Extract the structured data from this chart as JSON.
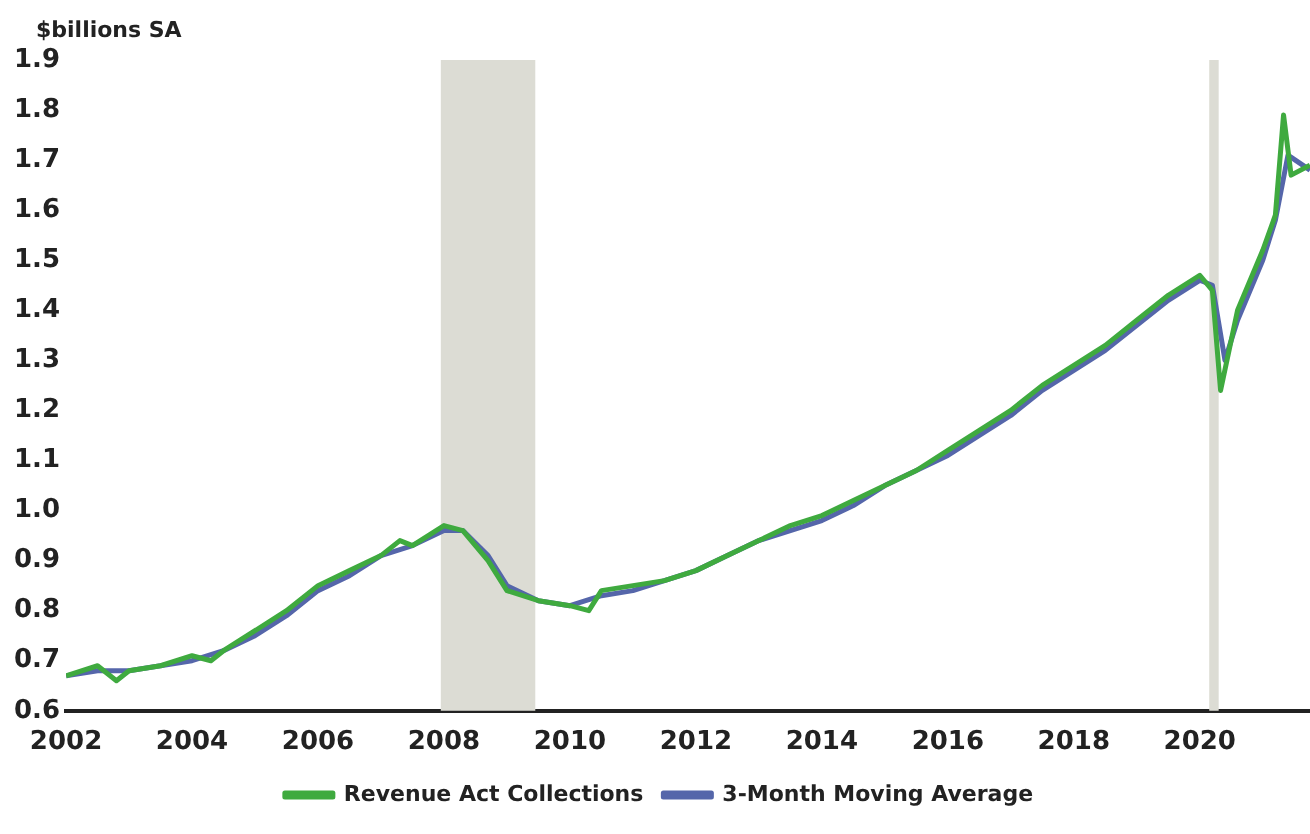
{
  "chart_data": {
    "type": "line",
    "ylabel": "$billions SA",
    "xlim": [
      2002,
      2021.75
    ],
    "xticks": [
      2002,
      2004,
      2006,
      2008,
      2010,
      2012,
      2014,
      2016,
      2018,
      2020
    ],
    "ylim": [
      0.6,
      1.9
    ],
    "yticks": [
      {
        "value": 0.6,
        "label": "0.6"
      },
      {
        "value": 0.7,
        "label": "0.7"
      },
      {
        "value": 0.8,
        "label": "0.8"
      },
      {
        "value": 0.9,
        "label": "0.9"
      },
      {
        "value": 1,
        "label": "1.0"
      },
      {
        "value": 1.1,
        "label": "1.1"
      },
      {
        "value": 1.2,
        "label": "1.2"
      },
      {
        "value": 1.3,
        "label": "1.3"
      },
      {
        "value": 1.4,
        "label": "1.4"
      },
      {
        "value": 1.5,
        "label": "1.5"
      },
      {
        "value": 1.6,
        "label": "1.6"
      },
      {
        "value": 1.7,
        "label": "1.7"
      },
      {
        "value": 1.8,
        "label": "1.8"
      },
      {
        "value": 1.9,
        "label": "1.9"
      }
    ],
    "grid": false,
    "legend": "bottom",
    "marker": "none",
    "line_style": "solid",
    "bands": [
      {
        "axis": "x",
        "from": 2007.95,
        "to": 2009.45,
        "color": "#dcdcd4"
      },
      {
        "axis": "x",
        "from": 2020.15,
        "to": 2020.3,
        "color": "#dcdcd4"
      }
    ],
    "series": [
      {
        "name": "Revenue Act Collections",
        "color": "#3faa3f",
        "x": [
          2002,
          2002.5,
          2002.8,
          2003,
          2003.5,
          2004,
          2004.3,
          2004.5,
          2005,
          2005.5,
          2006,
          2006.5,
          2007,
          2007.3,
          2007.5,
          2008,
          2008.3,
          2008.7,
          2009,
          2009.5,
          2010,
          2010.3,
          2010.5,
          2011,
          2011.5,
          2012,
          2012.5,
          2013,
          2013.5,
          2014,
          2014.5,
          2015,
          2015.5,
          2016,
          2016.5,
          2017,
          2017.5,
          2018,
          2018.5,
          2019,
          2019.5,
          2020,
          2020.2,
          2020.33,
          2020.6,
          2021,
          2021.2,
          2021.33,
          2021.45,
          2021.75
        ],
        "values": [
          0.67,
          0.69,
          0.66,
          0.68,
          0.69,
          0.71,
          0.7,
          0.72,
          0.76,
          0.8,
          0.85,
          0.88,
          0.91,
          0.94,
          0.93,
          0.97,
          0.96,
          0.9,
          0.84,
          0.82,
          0.81,
          0.8,
          0.84,
          0.85,
          0.86,
          0.88,
          0.91,
          0.94,
          0.97,
          0.99,
          1.02,
          1.05,
          1.08,
          1.12,
          1.16,
          1.2,
          1.25,
          1.29,
          1.33,
          1.38,
          1.43,
          1.47,
          1.44,
          1.24,
          1.4,
          1.52,
          1.59,
          1.79,
          1.67,
          1.69
        ]
      },
      {
        "name": "3-Month Moving Average",
        "color": "#5566aa",
        "x": [
          2002,
          2002.5,
          2003,
          2003.5,
          2004,
          2004.5,
          2005,
          2005.5,
          2006,
          2006.5,
          2007,
          2007.5,
          2008,
          2008.3,
          2008.7,
          2009,
          2009.5,
          2010,
          2010.5,
          2011,
          2011.5,
          2012,
          2012.5,
          2013,
          2013.5,
          2014,
          2014.5,
          2015,
          2015.5,
          2016,
          2016.5,
          2017,
          2017.5,
          2018,
          2018.5,
          2019,
          2019.5,
          2020,
          2020.2,
          2020.4,
          2020.6,
          2021,
          2021.2,
          2021.4,
          2021.75
        ],
        "values": [
          0.67,
          0.68,
          0.68,
          0.69,
          0.7,
          0.72,
          0.75,
          0.79,
          0.84,
          0.87,
          0.91,
          0.93,
          0.96,
          0.96,
          0.91,
          0.85,
          0.82,
          0.81,
          0.83,
          0.84,
          0.86,
          0.88,
          0.91,
          0.94,
          0.96,
          0.98,
          1.01,
          1.05,
          1.08,
          1.11,
          1.15,
          1.19,
          1.24,
          1.28,
          1.32,
          1.37,
          1.42,
          1.46,
          1.45,
          1.3,
          1.38,
          1.5,
          1.58,
          1.71,
          1.68
        ]
      }
    ]
  }
}
